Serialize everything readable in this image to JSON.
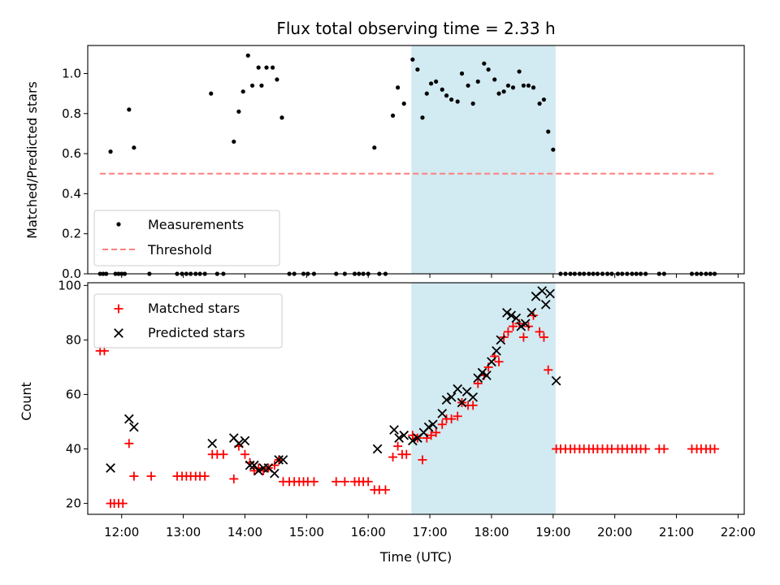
{
  "chart_data": [
    {
      "type": "scatter",
      "title": "Flux total observing time = 2.33 h",
      "xlabel": "",
      "ylabel": "Matched/Predicted stars",
      "xlim": [
        11.45,
        22.1
      ],
      "ylim": [
        0.0,
        1.14
      ],
      "yticks": [
        0.0,
        0.2,
        0.4,
        0.6,
        0.8,
        1.0
      ],
      "ytick_labels": [
        "0.0",
        "0.2",
        "0.4",
        "0.6",
        "0.8",
        "1.0"
      ],
      "grid": false,
      "legend": "lower-left",
      "shaded_span": {
        "x": [
          16.7,
          19.04
        ],
        "color": "#add8e6"
      },
      "series": [
        {
          "name": "Measurements",
          "marker": "dot",
          "color": "#000000",
          "points": [
            [
              11.65,
              0
            ],
            [
              11.7,
              0
            ],
            [
              11.75,
              0
            ],
            [
              11.82,
              0.61
            ],
            [
              11.9,
              0
            ],
            [
              11.95,
              0
            ],
            [
              12.0,
              0
            ],
            [
              12.05,
              0
            ],
            [
              12.12,
              0.82
            ],
            [
              12.2,
              0.63
            ],
            [
              12.45,
              0
            ],
            [
              12.9,
              0
            ],
            [
              12.98,
              0
            ],
            [
              13.05,
              0
            ],
            [
              13.12,
              0
            ],
            [
              13.2,
              0
            ],
            [
              13.27,
              0
            ],
            [
              13.35,
              0
            ],
            [
              13.45,
              0.9
            ],
            [
              13.55,
              0
            ],
            [
              13.65,
              0
            ],
            [
              13.82,
              0.66
            ],
            [
              13.9,
              0.81
            ],
            [
              13.97,
              0.91
            ],
            [
              14.05,
              1.09
            ],
            [
              14.12,
              0.94
            ],
            [
              14.22,
              1.03
            ],
            [
              14.27,
              0.94
            ],
            [
              14.35,
              1.03
            ],
            [
              14.45,
              1.03
            ],
            [
              14.52,
              0.97
            ],
            [
              14.6,
              0.78
            ],
            [
              14.72,
              0
            ],
            [
              14.8,
              0
            ],
            [
              14.95,
              0
            ],
            [
              15.02,
              0
            ],
            [
              15.12,
              0
            ],
            [
              15.48,
              0
            ],
            [
              15.62,
              0
            ],
            [
              15.78,
              0
            ],
            [
              15.85,
              0
            ],
            [
              15.92,
              0
            ],
            [
              16.0,
              0
            ],
            [
              16.1,
              0.63
            ],
            [
              16.18,
              0
            ],
            [
              16.28,
              0
            ],
            [
              16.4,
              0.79
            ],
            [
              16.48,
              0.93
            ],
            [
              16.58,
              0.85
            ],
            [
              16.72,
              1.07
            ],
            [
              16.8,
              1.02
            ],
            [
              16.88,
              0.78
            ],
            [
              16.95,
              0.9
            ],
            [
              17.02,
              0.95
            ],
            [
              17.1,
              0.96
            ],
            [
              17.2,
              0.92
            ],
            [
              17.27,
              0.89
            ],
            [
              17.35,
              0.87
            ],
            [
              17.45,
              0.86
            ],
            [
              17.52,
              1.0
            ],
            [
              17.62,
              0.94
            ],
            [
              17.7,
              0.85
            ],
            [
              17.78,
              0.96
            ],
            [
              17.88,
              1.05
            ],
            [
              17.95,
              1.02
            ],
            [
              18.05,
              0.97
            ],
            [
              18.12,
              0.9
            ],
            [
              18.2,
              0.91
            ],
            [
              18.27,
              0.94
            ],
            [
              18.35,
              0.93
            ],
            [
              18.45,
              1.01
            ],
            [
              18.52,
              0.94
            ],
            [
              18.6,
              0.94
            ],
            [
              18.68,
              0.93
            ],
            [
              18.78,
              0.85
            ],
            [
              18.85,
              0.87
            ],
            [
              18.92,
              0.71
            ],
            [
              19.0,
              0.62
            ],
            [
              19.12,
              0
            ],
            [
              19.2,
              0
            ],
            [
              19.28,
              0
            ],
            [
              19.35,
              0
            ],
            [
              19.43,
              0
            ],
            [
              19.5,
              0
            ],
            [
              19.58,
              0
            ],
            [
              19.65,
              0
            ],
            [
              19.72,
              0
            ],
            [
              19.8,
              0
            ],
            [
              19.88,
              0
            ],
            [
              19.95,
              0
            ],
            [
              20.05,
              0
            ],
            [
              20.12,
              0
            ],
            [
              20.2,
              0
            ],
            [
              20.28,
              0
            ],
            [
              20.35,
              0
            ],
            [
              20.42,
              0
            ],
            [
              20.5,
              0
            ],
            [
              20.72,
              0
            ],
            [
              20.8,
              0
            ],
            [
              21.25,
              0
            ],
            [
              21.33,
              0
            ],
            [
              21.4,
              0
            ],
            [
              21.48,
              0
            ],
            [
              21.55,
              0
            ],
            [
              21.62,
              0
            ]
          ]
        },
        {
          "name": "Threshold",
          "style": "dashed-line",
          "color": "#ff7f7f",
          "points": [
            [
              11.65,
              0.5
            ],
            [
              21.62,
              0.5
            ]
          ]
        }
      ]
    },
    {
      "type": "scatter",
      "title": "",
      "xlabel": "Time (UTC)",
      "ylabel": "Count",
      "xlim": [
        11.45,
        22.1
      ],
      "ylim": [
        16,
        101
      ],
      "yticks": [
        20,
        40,
        60,
        80,
        100
      ],
      "ytick_labels": [
        "20",
        "40",
        "60",
        "80",
        "100"
      ],
      "xticks": [
        12,
        13,
        14,
        15,
        16,
        17,
        18,
        19,
        20,
        21,
        22
      ],
      "xtick_labels": [
        "12:00",
        "13:00",
        "14:00",
        "15:00",
        "16:00",
        "17:00",
        "18:00",
        "19:00",
        "20:00",
        "21:00",
        "22:00"
      ],
      "grid": false,
      "legend": "top-left",
      "shaded_span": {
        "x": [
          16.7,
          19.04
        ],
        "color": "#add8e6"
      },
      "series": [
        {
          "name": "Matched stars",
          "marker": "plus",
          "color": "#ff0000",
          "points": [
            [
              11.65,
              76
            ],
            [
              11.72,
              76
            ],
            [
              11.82,
              20
            ],
            [
              11.88,
              20
            ],
            [
              11.95,
              20
            ],
            [
              12.02,
              20
            ],
            [
              12.12,
              42
            ],
            [
              12.2,
              30
            ],
            [
              12.48,
              30
            ],
            [
              12.9,
              30
            ],
            [
              12.98,
              30
            ],
            [
              13.05,
              30
            ],
            [
              13.12,
              30
            ],
            [
              13.2,
              30
            ],
            [
              13.27,
              30
            ],
            [
              13.35,
              30
            ],
            [
              13.47,
              38
            ],
            [
              13.55,
              38
            ],
            [
              13.65,
              38
            ],
            [
              13.82,
              29
            ],
            [
              13.9,
              41
            ],
            [
              14.0,
              38
            ],
            [
              14.08,
              35
            ],
            [
              14.15,
              32
            ],
            [
              14.22,
              33
            ],
            [
              14.3,
              32
            ],
            [
              14.38,
              33
            ],
            [
              14.48,
              34
            ],
            [
              14.55,
              36
            ],
            [
              14.62,
              28
            ],
            [
              14.72,
              28
            ],
            [
              14.8,
              28
            ],
            [
              14.88,
              28
            ],
            [
              14.95,
              28
            ],
            [
              15.02,
              28
            ],
            [
              15.12,
              28
            ],
            [
              15.48,
              28
            ],
            [
              15.62,
              28
            ],
            [
              15.78,
              28
            ],
            [
              15.85,
              28
            ],
            [
              15.92,
              28
            ],
            [
              16.0,
              28
            ],
            [
              16.1,
              25
            ],
            [
              16.18,
              25
            ],
            [
              16.28,
              25
            ],
            [
              16.4,
              37
            ],
            [
              16.48,
              41
            ],
            [
              16.55,
              38
            ],
            [
              16.62,
              38
            ],
            [
              16.72,
              45
            ],
            [
              16.8,
              44
            ],
            [
              16.88,
              36
            ],
            [
              16.95,
              44
            ],
            [
              17.02,
              45
            ],
            [
              17.1,
              46
            ],
            [
              17.2,
              49
            ],
            [
              17.27,
              51
            ],
            [
              17.35,
              51
            ],
            [
              17.45,
              52
            ],
            [
              17.52,
              57
            ],
            [
              17.62,
              56
            ],
            [
              17.7,
              56
            ],
            [
              17.78,
              64
            ],
            [
              17.88,
              67
            ],
            [
              17.95,
              70
            ],
            [
              18.05,
              74
            ],
            [
              18.12,
              72
            ],
            [
              18.2,
              81
            ],
            [
              18.27,
              83
            ],
            [
              18.35,
              85
            ],
            [
              18.45,
              86
            ],
            [
              18.52,
              81
            ],
            [
              18.6,
              85
            ],
            [
              18.68,
              89
            ],
            [
              18.78,
              83
            ],
            [
              18.85,
              81
            ],
            [
              18.92,
              69
            ],
            [
              19.05,
              40
            ],
            [
              19.12,
              40
            ],
            [
              19.2,
              40
            ],
            [
              19.28,
              40
            ],
            [
              19.35,
              40
            ],
            [
              19.43,
              40
            ],
            [
              19.5,
              40
            ],
            [
              19.58,
              40
            ],
            [
              19.65,
              40
            ],
            [
              19.72,
              40
            ],
            [
              19.8,
              40
            ],
            [
              19.88,
              40
            ],
            [
              19.95,
              40
            ],
            [
              20.05,
              40
            ],
            [
              20.12,
              40
            ],
            [
              20.2,
              40
            ],
            [
              20.28,
              40
            ],
            [
              20.35,
              40
            ],
            [
              20.42,
              40
            ],
            [
              20.5,
              40
            ],
            [
              20.72,
              40
            ],
            [
              20.8,
              40
            ],
            [
              21.25,
              40
            ],
            [
              21.33,
              40
            ],
            [
              21.4,
              40
            ],
            [
              21.48,
              40
            ],
            [
              21.55,
              40
            ],
            [
              21.62,
              40
            ]
          ]
        },
        {
          "name": "Predicted stars",
          "marker": "x",
          "color": "#000000",
          "points": [
            [
              11.82,
              33
            ],
            [
              12.12,
              51
            ],
            [
              12.2,
              48
            ],
            [
              13.47,
              42
            ],
            [
              13.82,
              44
            ],
            [
              13.9,
              42
            ],
            [
              14.0,
              43
            ],
            [
              14.08,
              34
            ],
            [
              14.15,
              34
            ],
            [
              14.22,
              32
            ],
            [
              14.3,
              33
            ],
            [
              14.38,
              33
            ],
            [
              14.48,
              31
            ],
            [
              14.55,
              36
            ],
            [
              14.62,
              36
            ],
            [
              16.15,
              40
            ],
            [
              16.42,
              47
            ],
            [
              16.5,
              44
            ],
            [
              16.58,
              45
            ],
            [
              16.72,
              43
            ],
            [
              16.8,
              44
            ],
            [
              16.9,
              46
            ],
            [
              16.98,
              48
            ],
            [
              17.05,
              49
            ],
            [
              17.2,
              53
            ],
            [
              17.27,
              58
            ],
            [
              17.35,
              59
            ],
            [
              17.45,
              62
            ],
            [
              17.52,
              57
            ],
            [
              17.6,
              61
            ],
            [
              17.7,
              59
            ],
            [
              17.78,
              66
            ],
            [
              17.85,
              68
            ],
            [
              17.92,
              67
            ],
            [
              18.0,
              72
            ],
            [
              18.08,
              76
            ],
            [
              18.15,
              80
            ],
            [
              18.25,
              90
            ],
            [
              18.32,
              89
            ],
            [
              18.4,
              88
            ],
            [
              18.48,
              85
            ],
            [
              18.55,
              86
            ],
            [
              18.65,
              90
            ],
            [
              18.72,
              96
            ],
            [
              18.82,
              98
            ],
            [
              18.88,
              93
            ],
            [
              18.95,
              97
            ],
            [
              19.05,
              65
            ]
          ]
        }
      ]
    }
  ]
}
